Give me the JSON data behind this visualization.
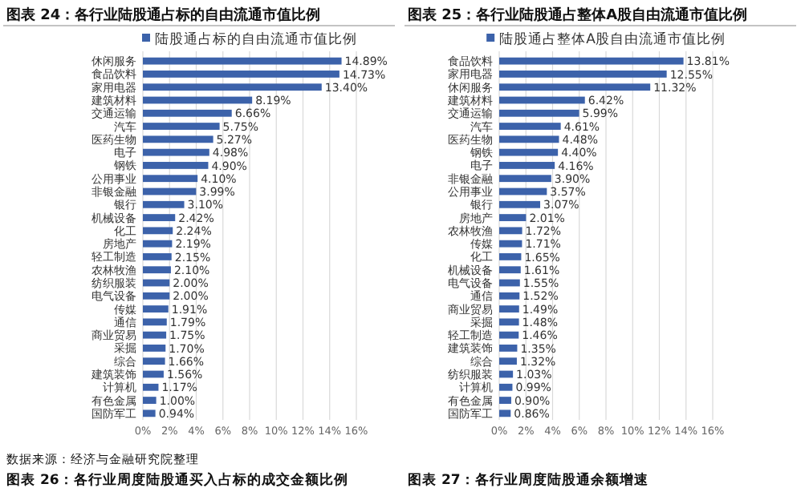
{
  "chart_data": [
    {
      "type": "bar",
      "orientation": "horizontal",
      "title": "图表 24：各行业陆股通占标的自由流通市值比例",
      "legend": "top",
      "grid": "x",
      "categories": [
        "休闲服务",
        "食品饮料",
        "家用电器",
        "建筑材料",
        "交通运输",
        "汽车",
        "医药生物",
        "电子",
        "钢铁",
        "公用事业",
        "非银金融",
        "银行",
        "机械设备",
        "化工",
        "房地产",
        "轻工制造",
        "农林牧渔",
        "纺织服装",
        "电气设备",
        "传媒",
        "通信",
        "商业贸易",
        "采掘",
        "综合",
        "建筑装饰",
        "计算机",
        "有色金属",
        "国防军工"
      ],
      "series": [
        {
          "name": "陆股通占标的自由流通市值比例",
          "color": "#3c62aa",
          "values": [
            14.89,
            14.73,
            13.4,
            8.19,
            6.66,
            5.75,
            5.27,
            4.98,
            4.9,
            4.1,
            3.99,
            3.1,
            2.42,
            2.24,
            2.19,
            2.15,
            2.1,
            2.0,
            2.0,
            1.91,
            1.79,
            1.75,
            1.7,
            1.66,
            1.56,
            1.17,
            1.0,
            0.94
          ],
          "value_labels": [
            "14.89%",
            "14.73%",
            "13.40%",
            "8.19%",
            "6.66%",
            "5.75%",
            "5.27%",
            "4.98%",
            "4.90%",
            "4.10%",
            "3.99%",
            "3.10%",
            "2.42%",
            "2.24%",
            "2.19%",
            "2.15%",
            "2.10%",
            "2.00%",
            "2.00%",
            "1.91%",
            "1.79%",
            "1.75%",
            "1.70%",
            "1.66%",
            "1.56%",
            "1.17%",
            "1.00%",
            "0.94%"
          ]
        }
      ],
      "xlim": [
        0,
        16
      ],
      "xticks": [
        {
          "value": 0,
          "label": "0%"
        },
        {
          "value": 2,
          "label": "2%"
        },
        {
          "value": 4,
          "label": "4%"
        },
        {
          "value": 6,
          "label": "6%"
        },
        {
          "value": 8,
          "label": "8%"
        },
        {
          "value": 10,
          "label": "10%"
        },
        {
          "value": 12,
          "label": "12%"
        },
        {
          "value": 14,
          "label": "14%"
        },
        {
          "value": 16,
          "label": "16%"
        }
      ],
      "annotations": [
        "数据来源：经济与金融研究院整理",
        "图表 26：各行业周度陆股通买入占标的成交金额比例"
      ]
    },
    {
      "type": "bar",
      "orientation": "horizontal",
      "title": "图表 25：各行业陆股通占整体A股自由流通市值比例",
      "legend": "top",
      "grid": "x",
      "categories": [
        "食品饮料",
        "家用电器",
        "休闲服务",
        "建筑材料",
        "交通运输",
        "汽车",
        "医药生物",
        "钢铁",
        "电子",
        "非银金融",
        "公用事业",
        "银行",
        "房地产",
        "农林牧渔",
        "传媒",
        "化工",
        "机械设备",
        "电气设备",
        "通信",
        "商业贸易",
        "采掘",
        "轻工制造",
        "建筑装饰",
        "综合",
        "纺织服装",
        "计算机",
        "有色金属",
        "国防军工"
      ],
      "series": [
        {
          "name": "陆股通占整体A股自由流通市值比例",
          "color": "#3c62aa",
          "values": [
            13.81,
            12.55,
            11.32,
            6.42,
            5.99,
            4.61,
            4.48,
            4.4,
            4.16,
            3.9,
            3.57,
            3.07,
            2.01,
            1.72,
            1.71,
            1.65,
            1.61,
            1.55,
            1.52,
            1.49,
            1.48,
            1.46,
            1.35,
            1.32,
            1.03,
            0.99,
            0.9,
            0.86
          ],
          "value_labels": [
            "13.81%",
            "12.55%",
            "11.32%",
            "6.42%",
            "5.99%",
            "4.61%",
            "4.48%",
            "4.40%",
            "4.16%",
            "3.90%",
            "3.57%",
            "3.07%",
            "2.01%",
            "1.72%",
            "1.71%",
            "1.65%",
            "1.61%",
            "1.55%",
            "1.52%",
            "1.49%",
            "1.48%",
            "1.46%",
            "1.35%",
            "1.32%",
            "1.03%",
            "0.99%",
            "0.90%",
            "0.86%"
          ]
        }
      ],
      "xlim": [
        0,
        16
      ],
      "xticks": [
        {
          "value": 0,
          "label": "0%"
        },
        {
          "value": 2,
          "label": "2%"
        },
        {
          "value": 4,
          "label": "4%"
        },
        {
          "value": 6,
          "label": "6%"
        },
        {
          "value": 8,
          "label": "8%"
        },
        {
          "value": 10,
          "label": "10%"
        },
        {
          "value": 12,
          "label": "12%"
        },
        {
          "value": 14,
          "label": "14%"
        },
        {
          "value": 16,
          "label": "16%"
        }
      ],
      "annotations": [
        "图表 27：各行业周度陆股通余额增速"
      ]
    }
  ]
}
